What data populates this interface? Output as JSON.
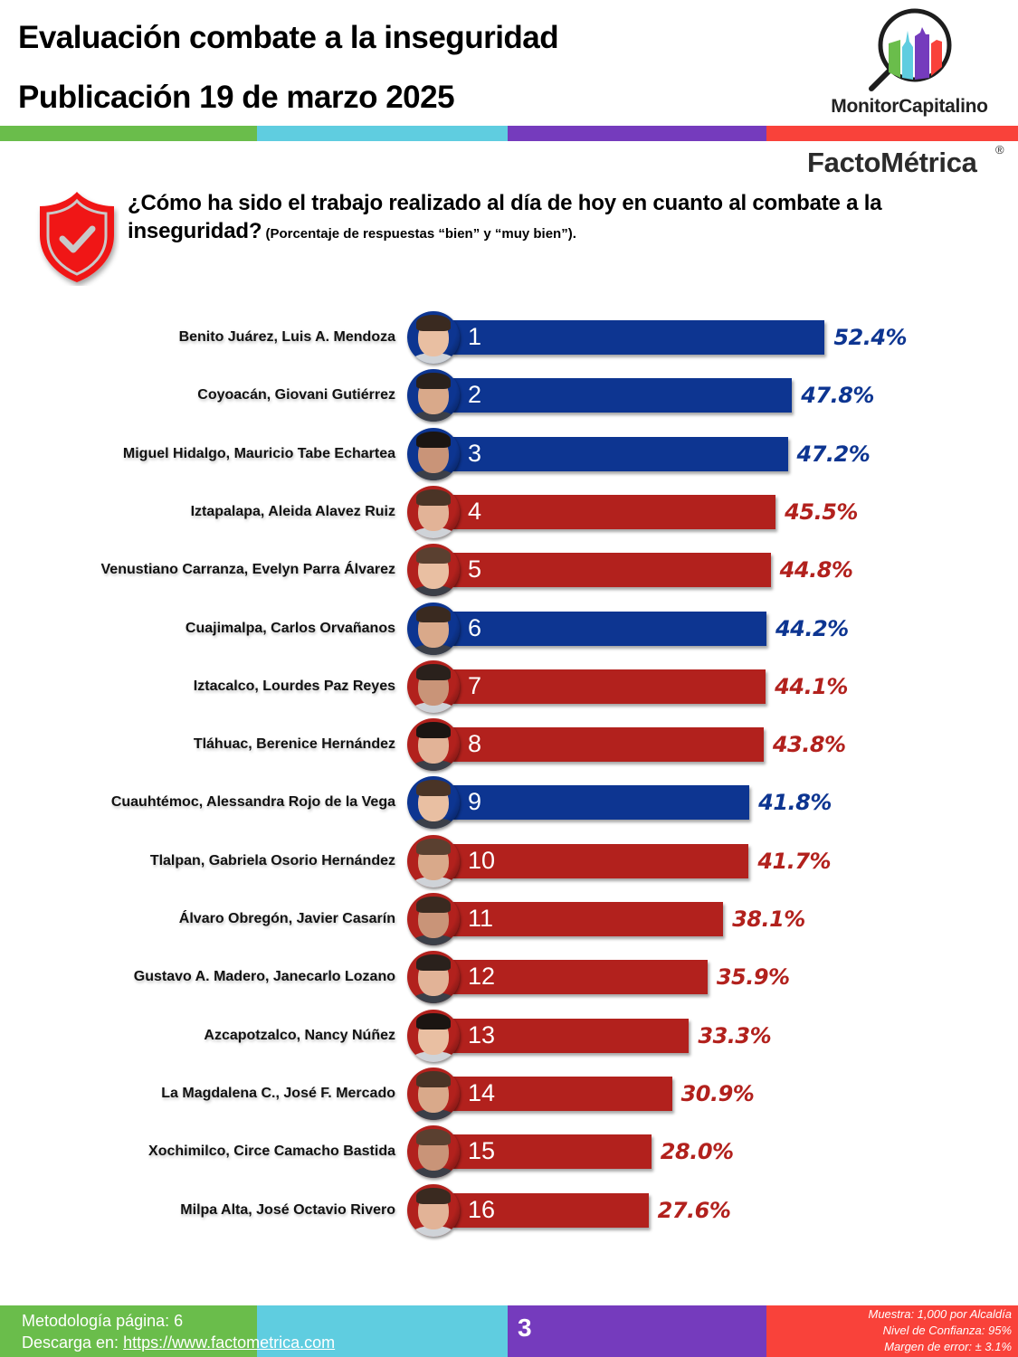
{
  "header": {
    "title": "Evaluación combate a la inseguridad",
    "subtitle": "Publicación 19 de marzo 2025"
  },
  "logos": {
    "monitor": "MonitorCapitalino",
    "facto": "FactoMétrica",
    "facto_mark": "®"
  },
  "brand_colors": {
    "green": "#6abd4b",
    "cyan": "#5fcde0",
    "purple": "#753bbd",
    "red": "#f9423a"
  },
  "question": {
    "text": "¿Cómo ha sido el trabajo realizado al día de hoy en cuanto al combate a la inseguridad?",
    "note": " (Porcentaje de respuestas “bien” y “muy bien”)."
  },
  "icons": {
    "shield": "shield-check-icon",
    "magnifier": "magnifier-city-icon"
  },
  "chart_data": {
    "type": "bar",
    "orientation": "horizontal",
    "title": "¿Cómo ha sido el trabajo realizado al día de hoy en cuanto al combate a la inseguridad?",
    "subtitle": "(Porcentaje de respuestas “bien” y “muy bien”).",
    "xlabel": "",
    "ylabel": "",
    "unit": "%",
    "xlim": [
      0,
      100
    ],
    "grid": false,
    "legend": "none",
    "party_colors": {
      "blue": "#0d3591",
      "red": "#b2211d"
    },
    "categories": [
      "Benito Juárez, Luis A. Mendoza",
      "Coyoacán, Giovani Gutiérrez",
      "Miguel Hidalgo, Mauricio Tabe Echartea",
      "Iztapalapa, Aleida Alavez Ruiz",
      "Venustiano Carranza, Evelyn Parra Álvarez",
      "Cuajimalpa, Carlos Orvañanos",
      "Iztacalco, Lourdes Paz Reyes",
      "Tláhuac, Berenice Hernández",
      "Cuauhtémoc, Alessandra Rojo de la Vega",
      "Tlalpan, Gabriela Osorio Hernández",
      "Álvaro Obregón, Javier Casarín",
      "Gustavo A. Madero, Janecarlo Lozano",
      "Azcapotzalco, Nancy Núñez",
      "La Magdalena C., José F. Mercado",
      "Xochimilco, Circe Camacho Bastida",
      "Milpa Alta, José Octavio Rivero"
    ],
    "ranks": [
      "1",
      "2",
      "3",
      "4",
      "5",
      "6",
      "7",
      "8",
      "9",
      "10",
      "11",
      "12",
      "13",
      "14",
      "15",
      "16"
    ],
    "values": [
      52.4,
      47.8,
      47.2,
      45.5,
      44.8,
      44.2,
      44.1,
      43.8,
      41.8,
      41.7,
      38.1,
      35.9,
      33.3,
      30.9,
      28.0,
      27.6
    ],
    "value_labels": [
      "52.4%",
      "47.8%",
      "47.2%",
      "45.5%",
      "44.8%",
      "44.2%",
      "44.1%",
      "43.8%",
      "41.8%",
      "41.7%",
      "38.1%",
      "35.9%",
      "33.3%",
      "30.9%",
      "28.0%",
      "27.6%"
    ],
    "bar_colors": [
      "blue",
      "blue",
      "blue",
      "red",
      "red",
      "blue",
      "red",
      "red",
      "blue",
      "red",
      "red",
      "red",
      "red",
      "red",
      "red",
      "red"
    ]
  },
  "footer": {
    "methodology": "Metodología página: 6",
    "download_label": "Descarga en: ",
    "download_link": "https://www.factometrica.com",
    "page_number": "3",
    "sample": "Muestra:  1,000 por Alcaldía",
    "confidence": "Nivel de Confianza: 95%",
    "margin": "Margen de error: ± 3.1%"
  }
}
